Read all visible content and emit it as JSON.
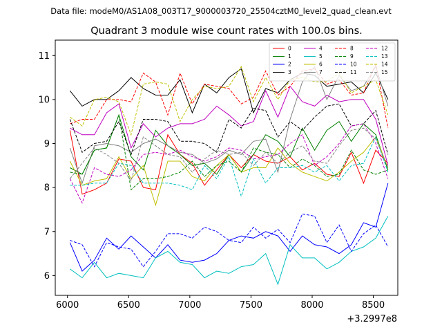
{
  "header": {
    "data_file_text": "Data file: modeM0/AS1A08_003T17_9000003720_25504cztM0_level2_quad_clean.evt"
  },
  "chart_data": {
    "type": "line",
    "title": "Quadrant 3 module wise count rates with 100.0s bins.",
    "xlabel": "",
    "ylabel": "",
    "x_offset_label": "+3.2997e8",
    "xlim": [
      5900,
      8700
    ],
    "ylim": [
      5.55,
      11.35
    ],
    "x_ticks": [
      6000,
      6500,
      7000,
      7500,
      8000,
      8500
    ],
    "y_ticks": [
      6,
      7,
      8,
      9,
      10,
      11
    ],
    "legend_position": "top-right",
    "grid": false,
    "x": [
      6020,
      6120,
      6220,
      6320,
      6420,
      6520,
      6620,
      6720,
      6820,
      6920,
      7020,
      7120,
      7220,
      7320,
      7420,
      7520,
      7620,
      7720,
      7820,
      7920,
      8020,
      8120,
      8220,
      8320,
      8420,
      8520,
      8620
    ],
    "series": [
      {
        "name": "0",
        "color": "#ff0000",
        "style": "solid",
        "values": [
          9.3,
          7.85,
          7.95,
          8.1,
          8.65,
          8.6,
          8.0,
          7.95,
          9.2,
          8.75,
          8.55,
          8.05,
          8.4,
          8.75,
          8.45,
          8.75,
          8.6,
          8.55,
          8.7,
          8.4,
          8.55,
          8.3,
          8.25,
          8.8,
          8.1,
          8.85,
          8.55
        ]
      },
      {
        "name": "1",
        "color": "#008000",
        "style": "solid",
        "values": [
          8.45,
          8.3,
          8.85,
          8.9,
          9.65,
          8.7,
          8.4,
          9.3,
          8.95,
          8.75,
          8.5,
          8.55,
          8.3,
          8.75,
          8.35,
          8.75,
          9.2,
          9.05,
          8.7,
          9.35,
          8.85,
          9.3,
          9.5,
          9.05,
          9.45,
          9.2,
          8.4
        ]
      },
      {
        "name": "2",
        "color": "#0000ff",
        "style": "solid",
        "values": [
          6.75,
          6.1,
          6.35,
          6.85,
          6.6,
          6.9,
          6.65,
          6.4,
          6.7,
          6.35,
          6.3,
          6.35,
          6.5,
          6.8,
          6.9,
          6.85,
          7.0,
          6.9,
          6.55,
          6.9,
          6.7,
          6.65,
          6.5,
          6.7,
          7.2,
          7.1,
          8.1
        ]
      },
      {
        "name": "3",
        "color": "#000000",
        "style": "solid",
        "values": [
          10.2,
          9.85,
          10.0,
          10.0,
          10.2,
          10.5,
          10.25,
          10.1,
          10.1,
          10.45,
          9.7,
          10.35,
          10.15,
          10.5,
          10.7,
          9.7,
          10.25,
          10.15,
          10.45,
          10.6,
          10.55,
          10.3,
          10.35,
          10.4,
          10.15,
          10.6,
          10.0
        ]
      },
      {
        "name": "4",
        "color": "#bf00bf",
        "style": "solid",
        "values": [
          9.35,
          9.2,
          9.2,
          9.7,
          9.9,
          8.9,
          9.45,
          9.15,
          9.35,
          9.45,
          9.45,
          9.55,
          9.85,
          9.65,
          9.4,
          9.5,
          10.2,
          9.6,
          10.3,
          9.95,
          9.85,
          10.1,
          9.95,
          10.0,
          10.0,
          9.55,
          8.5
        ]
      },
      {
        "name": "5",
        "color": "#00bfbf",
        "style": "solid",
        "values": [
          6.15,
          5.95,
          6.3,
          5.95,
          6.05,
          6.0,
          5.95,
          6.4,
          6.55,
          6.3,
          6.25,
          5.95,
          6.1,
          6.05,
          6.2,
          6.25,
          6.5,
          5.8,
          6.7,
          6.4,
          6.4,
          6.15,
          6.3,
          6.55,
          6.65,
          6.85,
          7.35
        ]
      },
      {
        "name": "6",
        "color": "#bfbf00",
        "style": "solid",
        "values": [
          8.6,
          8.05,
          8.15,
          8.2,
          8.7,
          8.2,
          8.5,
          7.6,
          8.6,
          8.6,
          8.25,
          8.15,
          8.5,
          8.75,
          8.35,
          8.45,
          8.45,
          8.9,
          8.55,
          8.35,
          8.25,
          8.15,
          8.35,
          8.6,
          8.8,
          9.15,
          8.45
        ]
      },
      {
        "name": "7",
        "color": "#808080",
        "style": "solid",
        "values": [
          8.9,
          8.1,
          8.95,
          9.0,
          8.95,
          8.8,
          9.0,
          9.1,
          8.95,
          8.8,
          8.75,
          8.55,
          8.65,
          8.85,
          8.75,
          9.05,
          9.1,
          8.35,
          9.55,
          10.4,
          10.75,
          10.0,
          10.55,
          10.2,
          10.3,
          10.75,
          9.85
        ]
      },
      {
        "name": "8",
        "color": "#ff0000",
        "style": "dashed",
        "values": [
          9.45,
          9.55,
          9.55,
          10.0,
          10.0,
          9.95,
          10.6,
          10.4,
          9.65,
          10.6,
          9.9,
          10.35,
          10.3,
          10.25,
          9.9,
          10.05,
          10.65,
          10.1,
          10.3,
          10.65,
          10.7,
          10.35,
          10.45,
          10.1,
          10.15,
          10.8,
          9.35
        ]
      },
      {
        "name": "9",
        "color": "#008000",
        "style": "dashed",
        "values": [
          8.35,
          8.3,
          8.85,
          8.9,
          9.65,
          7.95,
          8.2,
          8.2,
          8.25,
          8.35,
          8.6,
          8.25,
          8.5,
          8.6,
          8.35,
          8.9,
          8.8,
          8.75,
          8.45,
          8.65,
          8.5,
          8.25,
          8.3,
          8.85,
          8.4,
          8.3,
          8.4
        ]
      },
      {
        "name": "10",
        "color": "#0000ff",
        "style": "dashed",
        "values": [
          6.8,
          6.7,
          6.2,
          6.75,
          6.65,
          6.6,
          6.2,
          6.55,
          6.95,
          6.95,
          6.85,
          7.1,
          7.0,
          6.8,
          6.75,
          7.1,
          6.85,
          7.05,
          6.75,
          7.4,
          7.35,
          6.75,
          7.15,
          6.55,
          6.95,
          7.15,
          6.65
        ]
      },
      {
        "name": "11",
        "color": "#000000",
        "style": "dashed",
        "values": [
          9.55,
          8.8,
          9.0,
          9.05,
          9.5,
          8.75,
          9.55,
          9.55,
          9.5,
          9.05,
          9.05,
          9.0,
          8.8,
          9.55,
          9.35,
          9.8,
          9.75,
          9.15,
          9.5,
          9.3,
          9.6,
          9.85,
          9.9,
          9.4,
          9.45,
          9.75,
          8.75
        ]
      },
      {
        "name": "12",
        "color": "#bf00bf",
        "style": "dashed",
        "values": [
          8.2,
          7.65,
          8.45,
          8.3,
          8.25,
          8.4,
          8.75,
          8.8,
          8.75,
          8.85,
          8.7,
          8.6,
          8.7,
          8.9,
          8.85,
          8.65,
          8.7,
          8.75,
          9.0,
          9.2,
          8.5,
          8.7,
          9.0,
          9.4,
          9.45,
          9.0,
          8.2
        ]
      },
      {
        "name": "13",
        "color": "#00bfbf",
        "style": "dashed",
        "values": [
          8.05,
          8.05,
          8.1,
          8.1,
          8.55,
          8.5,
          8.1,
          8.1,
          8.1,
          8.05,
          7.95,
          8.5,
          8.2,
          8.7,
          7.8,
          8.65,
          8.1,
          8.45,
          8.45,
          8.5,
          8.35,
          8.5,
          8.15,
          8.5,
          8.55,
          9.15,
          8.35
        ]
      },
      {
        "name": "14",
        "color": "#bfbf00",
        "style": "dashed",
        "values": [
          9.6,
          9.4,
          10.0,
          10.05,
          9.95,
          9.2,
          10.35,
          10.4,
          10.35,
          9.5,
          10.0,
          10.3,
          10.25,
          10.3,
          10.75,
          9.95,
          10.5,
          10.0,
          10.45,
          10.5,
          10.4,
          10.4,
          10.6,
          10.15,
          10.3,
          10.45,
          9.65
        ]
      },
      {
        "name": "15",
        "color": "#808080",
        "style": "dashed",
        "values": [
          8.2,
          8.55,
          8.9,
          8.75,
          8.55,
          8.15,
          9.15,
          8.95,
          8.75,
          8.7,
          8.35,
          8.65,
          8.85,
          8.75,
          8.8,
          8.5,
          8.8,
          8.55,
          8.8,
          8.95,
          8.6,
          8.55,
          8.95,
          9.3,
          9.35,
          9.1,
          8.45
        ]
      }
    ]
  }
}
